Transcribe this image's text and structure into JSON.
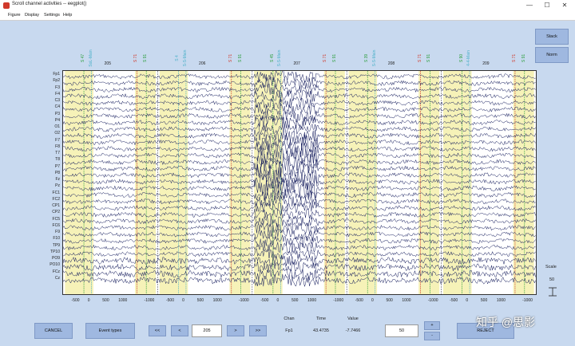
{
  "window": {
    "title": "Scroll channel activities -- eegplot()",
    "minimize": "—",
    "maximize": "☐",
    "close": "✕"
  },
  "menu": [
    "Figure",
    "Display",
    "Settings",
    "Help"
  ],
  "channels": [
    "Fp1",
    "Fp2",
    "F3",
    "F4",
    "C3",
    "C4",
    "P3",
    "P4",
    "O1",
    "O2",
    "F7",
    "F8",
    "T7",
    "T8",
    "P7",
    "P8",
    "Fz",
    "Pz",
    "FC1",
    "FC2",
    "CP1",
    "CP2",
    "FC5",
    "FC6",
    "F9",
    "F10",
    "TP9",
    "TP10",
    "PO9",
    "PO10",
    "FCz",
    "Cz"
  ],
  "epochs": [
    "205",
    "206",
    "207",
    "208",
    "209"
  ],
  "x_ticks": [
    "-500",
    "0",
    "500",
    "1000",
    "-1000",
    "-500",
    "0",
    "500",
    "1000",
    "-1000",
    "-500",
    "0",
    "500",
    "1000",
    "-1000",
    "-500",
    "0",
    "500",
    "1000",
    "-1000",
    "-500",
    "0",
    "500",
    "1000",
    "-1000"
  ],
  "events": [
    {
      "label": "S 47",
      "color": "#2a9d3a"
    },
    {
      "label": "SoL-Main",
      "color": "#4ab0c8"
    },
    {
      "label": "S 71",
      "color": "#d0392b"
    },
    {
      "label": "S 91",
      "color": "#2a9d3a"
    },
    {
      "label": "S 4",
      "color": "#4ab0c8"
    },
    {
      "label": "S-S-Main",
      "color": "#4ab0c8"
    },
    {
      "label": "S 71",
      "color": "#d0392b"
    },
    {
      "label": "S 91",
      "color": "#2a9d3a"
    },
    {
      "label": "S 45",
      "color": "#2a9d3a"
    },
    {
      "label": "S-S-Main",
      "color": "#4ab0c8"
    },
    {
      "label": "S 71",
      "color": "#d0392b"
    },
    {
      "label": "S 91",
      "color": "#2a9d3a"
    },
    {
      "label": "S 39",
      "color": "#2a9d3a"
    },
    {
      "label": "S-S-Main",
      "color": "#4ab0c8"
    },
    {
      "label": "S 71",
      "color": "#d0392b"
    },
    {
      "label": "S 91",
      "color": "#2a9d3a"
    },
    {
      "label": "S 90",
      "color": "#2a9d3a"
    },
    {
      "label": "4-4-Main",
      "color": "#4ab0c8"
    },
    {
      "label": "S 71",
      "color": "#d0392b"
    },
    {
      "label": "S 91",
      "color": "#2a9d3a"
    }
  ],
  "buttons": {
    "stack": "Stack",
    "norm": "Norm",
    "cancel": "CANCEL",
    "event_types": "Event types",
    "first": "<<",
    "prev": "<",
    "next": ">",
    "last": ">>",
    "plus": "+",
    "minus": "-",
    "reject": "REJECT"
  },
  "epoch_input": "205",
  "window_input": "50",
  "info": {
    "chan_label": "Chan",
    "time_label": "Time",
    "value_label": "Value",
    "chan": "Fp1",
    "time": "43.4735",
    "value": "-7.7466"
  },
  "scale": {
    "label": "Scale",
    "value": "50"
  },
  "watermark": "知乎 @思影",
  "colors": {
    "background": "#c8d9ef",
    "epoch_shade": "#f6f2b8",
    "trace": "#10185a",
    "button": "#9fb8e0"
  }
}
